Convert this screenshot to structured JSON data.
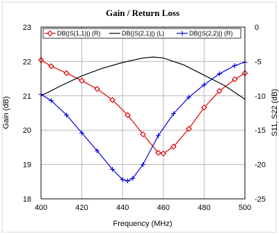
{
  "chart_data": {
    "type": "line",
    "title": "Gain / Return Loss",
    "xlabel": "Frequency (MHz)",
    "ylabel_left": "Gain (dB)",
    "ylabel_right": "S11, S22 (dB)",
    "xlim": [
      400,
      500
    ],
    "ylim_left": [
      18,
      23
    ],
    "ylim_right": [
      -25,
      0
    ],
    "x_ticks": [
      "400",
      "420",
      "440",
      "460",
      "480",
      "500"
    ],
    "y_ticks_left": [
      "18",
      "19",
      "20",
      "21",
      "22",
      "23"
    ],
    "y_ticks_right": [
      "-25",
      "-20",
      "-15",
      "-10",
      "-5",
      "0"
    ],
    "grid": true,
    "legend_position": "top",
    "series": [
      {
        "name": "DB(|S(1,1)|) (R)",
        "axis": "right",
        "color": "#e00000",
        "marker": "diamond",
        "x": [
          400,
          405,
          412.5,
          420,
          427.5,
          435,
          442.5,
          450,
          457.5,
          460,
          465,
          472.5,
          480,
          487.5,
          495,
          500
        ],
        "y": [
          -4.8,
          -5.7,
          -6.7,
          -7.8,
          -9.0,
          -10.6,
          -12.8,
          -15.6,
          -18.3,
          -18.4,
          -17.4,
          -14.8,
          -11.7,
          -9.3,
          -7.6,
          -6.7
        ]
      },
      {
        "name": "DB(|S(2,1)|) (L)",
        "axis": "left",
        "color": "#000000",
        "marker": "none",
        "x": [
          400,
          410,
          420,
          430,
          440,
          450,
          455,
          460,
          470,
          480,
          490,
          500
        ],
        "y": [
          21.0,
          21.3,
          21.58,
          21.8,
          21.97,
          22.1,
          22.13,
          22.1,
          21.9,
          21.6,
          21.3,
          20.9
        ]
      },
      {
        "name": "DB(|S(2,2)|) (R)",
        "axis": "right",
        "color": "#0000e0",
        "marker": "plus",
        "x": [
          400,
          405,
          412.5,
          420,
          427.5,
          435,
          440,
          442.5,
          445,
          450,
          457.5,
          465,
          472.5,
          480,
          487.5,
          495,
          500
        ],
        "y": [
          -9.8,
          -10.7,
          -12.8,
          -15.4,
          -18.0,
          -20.7,
          -22.2,
          -22.4,
          -22.0,
          -20.0,
          -15.8,
          -12.6,
          -10.2,
          -8.4,
          -6.8,
          -5.6,
          -5.1
        ]
      }
    ]
  }
}
